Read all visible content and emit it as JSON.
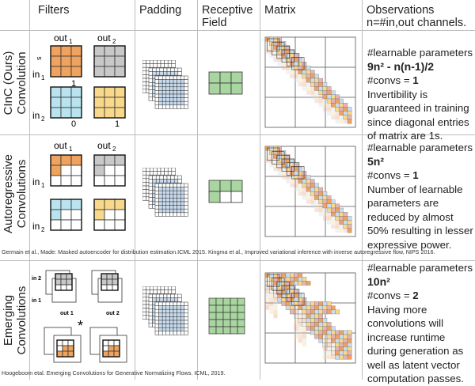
{
  "headers": {
    "filters": "Filters",
    "padding": "Padding",
    "receptive_field": "Receptive\nField",
    "matrix": "Matrix",
    "observations": "Observations\nn=#in,out channels."
  },
  "rows": [
    {
      "label": "CInC (Ours)\nConvolution",
      "filter_labels": {
        "out1": "out",
        "out2": "out",
        "in1": "in",
        "in2": "in",
        "s": "s",
        "one": "1",
        "zero": "0",
        "one_b": "1"
      },
      "obs_title": "#learnable parameters",
      "obs_formula": "9n² - n(n-1)/2",
      "obs_convs_label": "#convs = ",
      "obs_convs_value": "1",
      "obs_text": "Invertibility is guaranteed in training since diagonal entries of matrix are 1s."
    },
    {
      "label": "Autoregressive\nConvolutions",
      "filter_labels": {
        "out1": "out",
        "out2": "out",
        "in1": "in",
        "in2": "in"
      },
      "obs_title": "#learnable parameters",
      "obs_formula": "5n²",
      "obs_convs_label": "#convs = ",
      "obs_convs_value": "1",
      "obs_text": "Number of learnable parameters are reduced by almost 50% resulting in lesser expressive power.",
      "caption": "Germain et al., Made: Masked autoencoder for distribution estimation.ICML 2015. Kingma et al., Improved variational inference with inverse autoregressive flow, NIPS 2016."
    },
    {
      "label": "Emerging\nConvolutions",
      "filter_labels": {
        "in2": "in 2",
        "in1": "in 1",
        "out1": "out 1",
        "out2": "out 2",
        "star": "*"
      },
      "obs_title": "#learnable parameters",
      "obs_formula": "10n²",
      "obs_convs_label": "#convs = ",
      "obs_convs_value": "2",
      "obs_text": "Having more convolutions will increase runtime during generation as well as latent vector computation passes.",
      "caption": "Hoogeboom etal. Emerging Convolutions for Generative Normalizing Flows. ICML, 2019."
    }
  ],
  "colors": {
    "orange": "#f0a35e",
    "gray": "#c8c8c8",
    "blue": "#b8e3ef",
    "yellow": "#f8d88a",
    "green": "#a9d6a0",
    "pad_blue": "#c9dcef"
  }
}
